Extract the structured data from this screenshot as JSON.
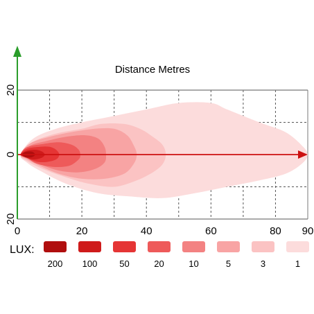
{
  "chart_data": {
    "type": "area",
    "title": "Distance Metres",
    "xlabel": "",
    "ylabel": "",
    "xlim": [
      0,
      90
    ],
    "ylim": [
      -20,
      20
    ],
    "x_ticks": [
      0,
      20,
      40,
      60,
      80,
      90
    ],
    "y_ticks": [
      {
        "value": 20,
        "label": "20"
      },
      {
        "value": 0,
        "label": "0"
      },
      {
        "value": -20,
        "label": "20"
      }
    ],
    "grid": true,
    "beam_axis_end_x": 90,
    "legend_title": "LUX:",
    "legend_placement": "bottom",
    "series": [
      {
        "lux": "1",
        "color": "#fcdcdc",
        "outline": [
          [
            1,
            0
          ],
          [
            5,
            5
          ],
          [
            12,
            8
          ],
          [
            20,
            10
          ],
          [
            30,
            12
          ],
          [
            40,
            14
          ],
          [
            50,
            16
          ],
          [
            60,
            16
          ],
          [
            65,
            14
          ],
          [
            75,
            10
          ],
          [
            83,
            7
          ],
          [
            88,
            3
          ],
          [
            90,
            0
          ],
          [
            88,
            -3
          ],
          [
            83,
            -6
          ],
          [
            75,
            -8
          ],
          [
            65,
            -10
          ],
          [
            55,
            -12
          ],
          [
            45,
            -13.5
          ],
          [
            35,
            -13
          ],
          [
            25,
            -12
          ],
          [
            15,
            -9
          ],
          [
            7,
            -5
          ],
          [
            3,
            -2.5
          ]
        ]
      },
      {
        "lux": "3",
        "color": "#fbc3c3",
        "outline": [
          [
            1,
            0
          ],
          [
            5,
            4
          ],
          [
            12,
            6.5
          ],
          [
            20,
            8
          ],
          [
            26,
            9.5
          ],
          [
            33,
            9.5
          ],
          [
            38,
            8
          ],
          [
            42,
            5.5
          ],
          [
            45,
            3
          ],
          [
            46,
            0
          ],
          [
            45,
            -3
          ],
          [
            42,
            -5.5
          ],
          [
            37,
            -8
          ],
          [
            30,
            -10
          ],
          [
            22,
            -9
          ],
          [
            15,
            -7
          ],
          [
            8,
            -4.5
          ],
          [
            3,
            -2
          ]
        ]
      },
      {
        "lux": "5",
        "color": "#f8a4a4",
        "outline": [
          [
            1,
            0
          ],
          [
            4,
            3.5
          ],
          [
            10,
            5.5
          ],
          [
            17,
            7
          ],
          [
            24,
            8
          ],
          [
            30,
            8
          ],
          [
            34,
            6
          ],
          [
            36,
            3
          ],
          [
            37,
            0
          ],
          [
            36,
            -3
          ],
          [
            33,
            -6
          ],
          [
            27,
            -7.5
          ],
          [
            20,
            -7.5
          ],
          [
            13,
            -6
          ],
          [
            7,
            -3.5
          ],
          [
            3,
            -1.5
          ]
        ]
      },
      {
        "lux": "10",
        "color": "#f38282",
        "outline": [
          [
            1,
            0
          ],
          [
            4,
            2.8
          ],
          [
            9,
            4.2
          ],
          [
            15,
            5.5
          ],
          [
            21,
            6
          ],
          [
            25,
            5
          ],
          [
            27,
            2.5
          ],
          [
            27.5,
            0
          ],
          [
            27,
            -2.5
          ],
          [
            24,
            -4.5
          ],
          [
            19,
            -5.5
          ],
          [
            13,
            -5
          ],
          [
            7,
            -3
          ],
          [
            3,
            -1.2
          ]
        ]
      },
      {
        "lux": "20",
        "color": "#ee5a5a",
        "outline": [
          [
            1,
            0
          ],
          [
            3,
            2.3
          ],
          [
            8,
            3.3
          ],
          [
            13,
            3.8
          ],
          [
            17,
            3
          ],
          [
            19,
            1.5
          ],
          [
            19.5,
            0
          ],
          [
            19,
            -1.5
          ],
          [
            16,
            -3.5
          ],
          [
            11,
            -3.8
          ],
          [
            6,
            -2.8
          ],
          [
            3,
            -1
          ]
        ]
      },
      {
        "lux": "50",
        "color": "#e53535",
        "outline": [
          [
            1,
            0
          ],
          [
            3,
            1.8
          ],
          [
            7,
            2.4
          ],
          [
            10,
            2.4
          ],
          [
            12,
            1.5
          ],
          [
            13,
            0
          ],
          [
            12,
            -1.5
          ],
          [
            9,
            -2.3
          ],
          [
            6,
            -2.2
          ],
          [
            3,
            -1
          ]
        ]
      },
      {
        "lux": "100",
        "color": "#cf1b1b",
        "outline": [
          [
            1,
            0
          ],
          [
            3,
            1.2
          ],
          [
            5.5,
            1.5
          ],
          [
            7.5,
            1
          ],
          [
            8.5,
            0
          ],
          [
            7.5,
            -1
          ],
          [
            5,
            -1.5
          ],
          [
            3,
            -1
          ]
        ]
      },
      {
        "lux": "200",
        "color": "#b00e0e",
        "outline": [
          [
            1.5,
            0
          ],
          [
            2.5,
            0.8
          ],
          [
            4.5,
            0.9
          ],
          [
            5.5,
            0
          ],
          [
            4.5,
            -0.8
          ],
          [
            2.5,
            -0.8
          ]
        ]
      }
    ],
    "legend": [
      {
        "label": "200",
        "color": "#b00e0e"
      },
      {
        "label": "100",
        "color": "#cf1b1b"
      },
      {
        "label": "50",
        "color": "#e53535"
      },
      {
        "label": "20",
        "color": "#ee5a5a"
      },
      {
        "label": "10",
        "color": "#f38282"
      },
      {
        "label": "5",
        "color": "#f8a4a4"
      },
      {
        "label": "3",
        "color": "#fbc3c3"
      },
      {
        "label": "1",
        "color": "#fcdcdc"
      }
    ],
    "colors": {
      "y_axis": "#2a9d2a",
      "beam_axis": "#cc1111",
      "grid": "#555555",
      "frame": "#777777"
    }
  }
}
